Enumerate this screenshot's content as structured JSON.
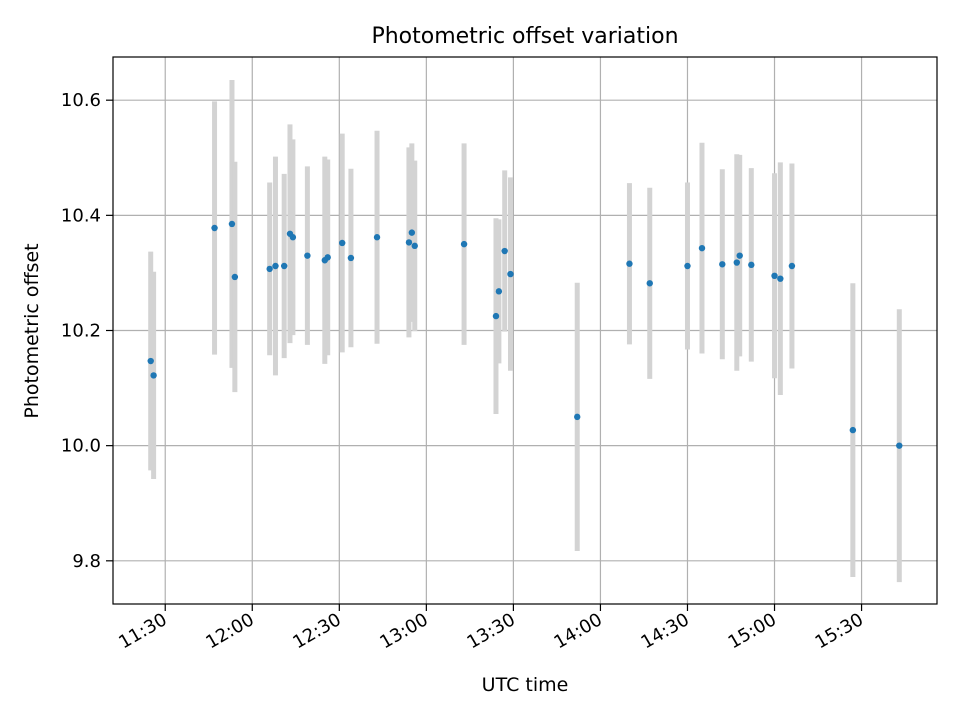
{
  "chart_data": {
    "type": "scatter",
    "title": "Photometric offset variation",
    "xlabel": "UTC time",
    "ylabel": "Photometric offset",
    "x_ticks": [
      "11:30",
      "12:00",
      "12:30",
      "13:00",
      "13:30",
      "14:00",
      "14:30",
      "15:00",
      "15:30"
    ],
    "y_ticks": [
      "9.8",
      "10.0",
      "10.2",
      "10.4",
      "10.6"
    ],
    "ylim": [
      9.725,
      10.675
    ],
    "xlim": [
      "11:12",
      "15:56"
    ],
    "grid": true,
    "marker_color": "#1f77b4",
    "errorbar_color": "#d3d3d3",
    "points": [
      {
        "time": "11:25",
        "y": 10.147,
        "err": 0.19
      },
      {
        "time": "11:26",
        "y": 10.122,
        "err": 0.18
      },
      {
        "time": "11:47",
        "y": 10.378,
        "err": 0.22
      },
      {
        "time": "11:53",
        "y": 10.385,
        "err": 0.25
      },
      {
        "time": "11:54",
        "y": 10.293,
        "err": 0.2
      },
      {
        "time": "12:06",
        "y": 10.307,
        "err": 0.15
      },
      {
        "time": "12:08",
        "y": 10.312,
        "err": 0.19
      },
      {
        "time": "12:11",
        "y": 10.312,
        "err": 0.16
      },
      {
        "time": "12:13",
        "y": 10.368,
        "err": 0.19
      },
      {
        "time": "12:14",
        "y": 10.362,
        "err": 0.17
      },
      {
        "time": "12:19",
        "y": 10.33,
        "err": 0.155
      },
      {
        "time": "12:25",
        "y": 10.322,
        "err": 0.18
      },
      {
        "time": "12:26",
        "y": 10.327,
        "err": 0.17
      },
      {
        "time": "12:31",
        "y": 10.352,
        "err": 0.19
      },
      {
        "time": "12:34",
        "y": 10.326,
        "err": 0.155
      },
      {
        "time": "12:43",
        "y": 10.362,
        "err": 0.185
      },
      {
        "time": "12:54",
        "y": 10.353,
        "err": 0.165
      },
      {
        "time": "12:55",
        "y": 10.37,
        "err": 0.155
      },
      {
        "time": "12:56",
        "y": 10.347,
        "err": 0.148
      },
      {
        "time": "13:13",
        "y": 10.35,
        "err": 0.175
      },
      {
        "time": "13:24",
        "y": 10.225,
        "err": 0.17
      },
      {
        "time": "13:25",
        "y": 10.268,
        "err": 0.125
      },
      {
        "time": "13:27",
        "y": 10.338,
        "err": 0.14
      },
      {
        "time": "13:29",
        "y": 10.298,
        "err": 0.168
      },
      {
        "time": "13:52",
        "y": 10.05,
        "err": 0.233
      },
      {
        "time": "14:10",
        "y": 10.316,
        "err": 0.14
      },
      {
        "time": "14:17",
        "y": 10.282,
        "err": 0.166
      },
      {
        "time": "14:30",
        "y": 10.312,
        "err": 0.145
      },
      {
        "time": "14:35",
        "y": 10.343,
        "err": 0.183
      },
      {
        "time": "14:42",
        "y": 10.315,
        "err": 0.165
      },
      {
        "time": "14:47",
        "y": 10.318,
        "err": 0.188
      },
      {
        "time": "14:48",
        "y": 10.33,
        "err": 0.175
      },
      {
        "time": "14:52",
        "y": 10.314,
        "err": 0.168
      },
      {
        "time": "15:00",
        "y": 10.295,
        "err": 0.178
      },
      {
        "time": "15:02",
        "y": 10.29,
        "err": 0.202
      },
      {
        "time": "15:06",
        "y": 10.312,
        "err": 0.178
      },
      {
        "time": "15:27",
        "y": 10.027,
        "err": 0.255
      },
      {
        "time": "15:43",
        "y": 10.0,
        "err": 0.237
      }
    ]
  }
}
